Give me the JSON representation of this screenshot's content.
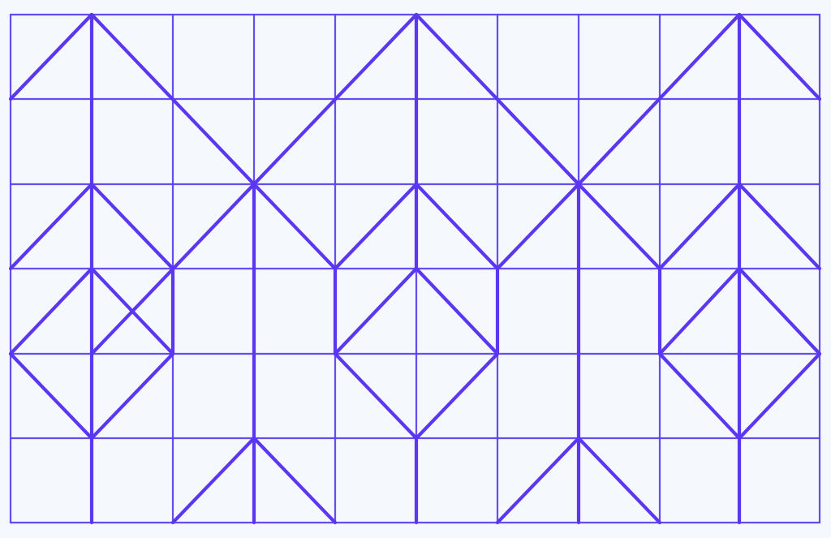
{
  "figure": {
    "kind": "hand-drawn geometric tessellation on square grid",
    "ink_color": "#5b37f2",
    "paper_color": "#f5f8fc",
    "grid": {
      "columns": 10,
      "rows": 6
    }
  }
}
